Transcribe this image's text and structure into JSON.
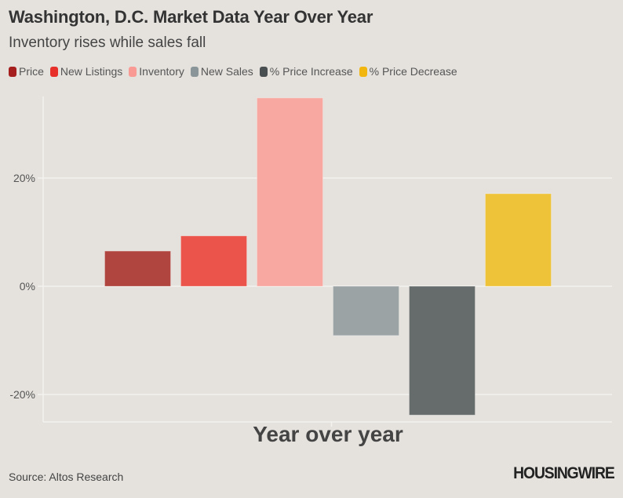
{
  "chart_data": {
    "type": "bar",
    "title": "Washington, D.C. Market Data Year Over Year",
    "subtitle": "Inventory rises while sales fall",
    "xlabel": "Year over year",
    "ylabel": "",
    "categories": [
      "Year over year"
    ],
    "series": [
      {
        "name": "Price",
        "values": [
          6.5
        ],
        "color": "#b0443e",
        "legend_color": "#a51f1f"
      },
      {
        "name": "New Listings",
        "values": [
          9.3
        ],
        "color": "#ea544a",
        "legend_color": "#e8302a"
      },
      {
        "name": "Inventory",
        "values": [
          34.8
        ],
        "color": "#f9a8a1",
        "legend_color": "#f99a95"
      },
      {
        "name": "New Sales",
        "values": [
          -9.1
        ],
        "color": "#9ba3a5",
        "legend_color": "#8a9599"
      },
      {
        "name": "% Price Increase",
        "values": [
          -23.8
        ],
        "color": "#666c6b",
        "legend_color": "#4a4f52"
      },
      {
        "name": "% Price Decrease",
        "values": [
          17.1
        ],
        "color": "#eec239",
        "legend_color": "#f2b611"
      }
    ],
    "y_ticks": [
      -20,
      0,
      20
    ],
    "y_tick_labels": [
      "-20%",
      "0%",
      "20%"
    ],
    "ylim": [
      -25.5,
      35
    ],
    "grid": true,
    "legend_position": "top-left"
  },
  "footer": {
    "source": "Source: Altos Research",
    "logo": "HOUSINGWIRE"
  }
}
